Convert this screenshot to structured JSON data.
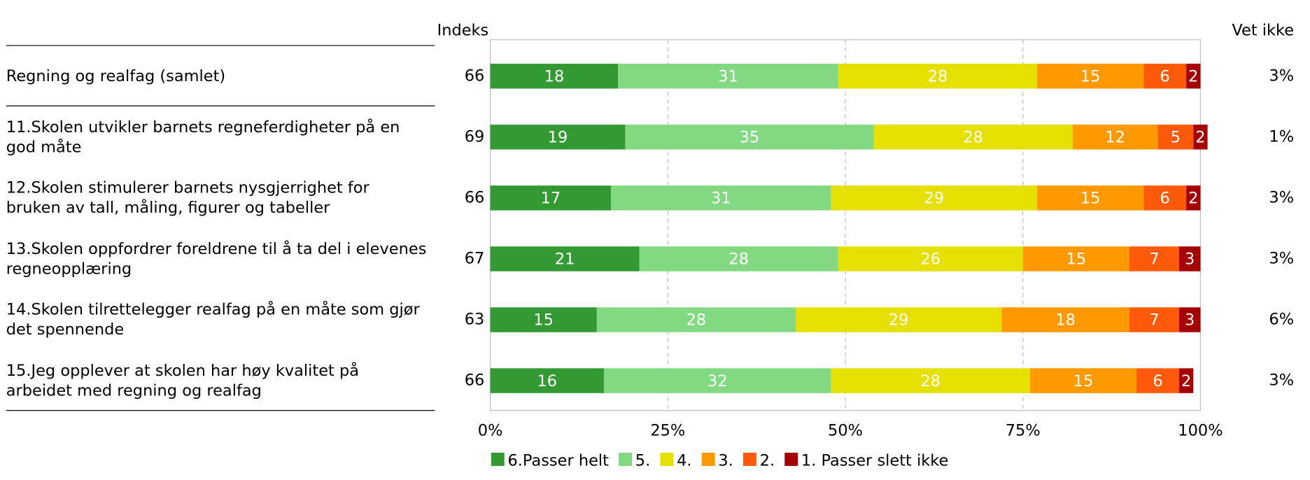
{
  "chart_data": {
    "type": "bar",
    "orientation": "horizontal",
    "stacked": true,
    "index_label": "Indeks",
    "na_label": "Vet ikke",
    "categories": [
      "Regning og realfag (samlet)",
      "11.Skolen utvikler barnets regneferdigheter på en god måte",
      "12.Skolen stimulerer barnets nysgjerrighet for bruken av tall, måling, figurer og tabeller",
      "13.Skolen oppfordrer foreldrene til å ta del i elevenes regneopplæring",
      "14.Skolen tilrettelegger realfag på en måte som gjør det spennende",
      "15.Jeg opplever at skolen har høy kvalitet på arbeidet med regning og realfag"
    ],
    "index": [
      66,
      69,
      66,
      67,
      63,
      66
    ],
    "na_values": [
      3,
      1,
      3,
      3,
      6,
      3
    ],
    "na_value_labels": [
      "3%",
      "1%",
      "3%",
      "3%",
      "6%",
      "3%"
    ],
    "series": [
      {
        "name": "6.Passer helt",
        "color": "#339933",
        "values": [
          18,
          19,
          17,
          21,
          15,
          16
        ]
      },
      {
        "name": "5.",
        "color": "#82d982",
        "values": [
          31,
          35,
          31,
          28,
          28,
          32
        ]
      },
      {
        "name": "4.",
        "color": "#e6e000",
        "values": [
          28,
          28,
          29,
          26,
          29,
          28
        ]
      },
      {
        "name": "3.",
        "color": "#ff9900",
        "values": [
          15,
          12,
          15,
          15,
          18,
          15
        ]
      },
      {
        "name": "2.",
        "color": "#ff5a0a",
        "values": [
          6,
          5,
          6,
          7,
          7,
          6
        ]
      },
      {
        "name": "1. Passer slett ikke",
        "color": "#a50000",
        "values": [
          2,
          2,
          2,
          3,
          3,
          2
        ]
      }
    ],
    "xlim": [
      0,
      100
    ],
    "xticks": [
      {
        "value": 0,
        "label": "0%"
      },
      {
        "value": 25,
        "label": "25%"
      },
      {
        "value": 50,
        "label": "50%"
      },
      {
        "value": 75,
        "label": "75%"
      },
      {
        "value": 100,
        "label": "100%"
      }
    ],
    "grid": true
  }
}
